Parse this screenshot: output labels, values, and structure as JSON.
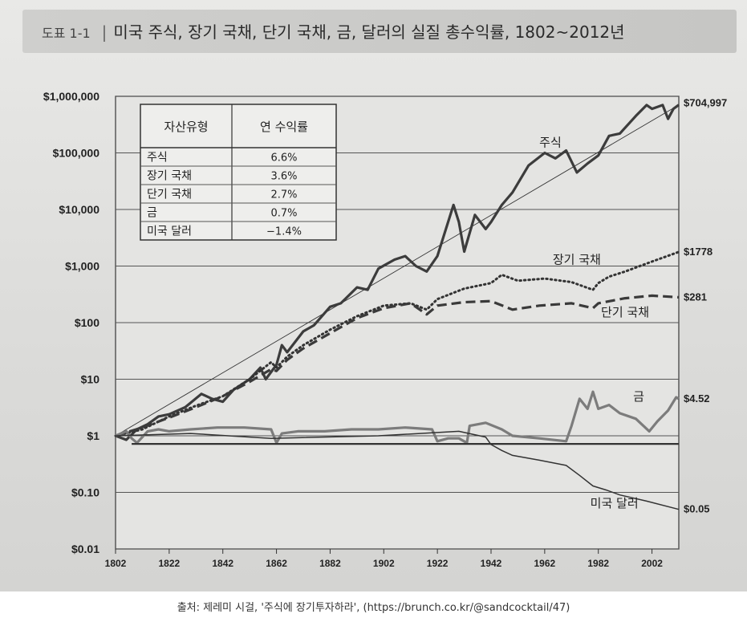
{
  "figure": {
    "number": "도표 1-1",
    "title": "미국 주식, 장기 국채, 단기 국채, 금, 달러의 실질 총수익률, 1802~2012년"
  },
  "caption": "출처: 제레미 시걸, '주식에 장기투자하라', (https://brunch.co.kr/@sandcocktail/47)",
  "chart_data": {
    "type": "line",
    "title": "미국 주식, 장기 국채, 단기 국채, 금, 달러의 실질 총수익률, 1802~2012년",
    "xlabel": "",
    "ylabel": "",
    "yscale": "log",
    "xlim": [
      1802,
      2012
    ],
    "ylim": [
      0.01,
      1000000
    ],
    "x_ticks": [
      1802,
      1822,
      1842,
      1862,
      1882,
      1902,
      1922,
      1942,
      1962,
      1982,
      2002
    ],
    "y_ticks": [
      {
        "value": 1000000,
        "label": "$1,000,000"
      },
      {
        "value": 100000,
        "label": "$100,000"
      },
      {
        "value": 10000,
        "label": "$10,000"
      },
      {
        "value": 1000,
        "label": "$1,000"
      },
      {
        "value": 100,
        "label": "$100"
      },
      {
        "value": 10,
        "label": "$10"
      },
      {
        "value": 1,
        "label": "$1"
      },
      {
        "value": 0.1,
        "label": "$0.10"
      },
      {
        "value": 0.01,
        "label": "$0.01"
      }
    ],
    "grid": true,
    "series": [
      {
        "name": "주식",
        "style": "solid-thick",
        "end_label": "$704,997",
        "x": [
          1802,
          1806,
          1810,
          1814,
          1818,
          1822,
          1828,
          1834,
          1838,
          1842,
          1846,
          1852,
          1856,
          1858,
          1862,
          1864,
          1866,
          1872,
          1876,
          1882,
          1886,
          1892,
          1896,
          1900,
          1906,
          1910,
          1914,
          1918,
          1922,
          1928,
          1930,
          1932,
          1936,
          1940,
          1942,
          1946,
          1950,
          1956,
          1962,
          1966,
          1970,
          1974,
          1978,
          1982,
          1986,
          1990,
          1996,
          2000,
          2002,
          2004,
          2006,
          2008,
          2010,
          2012
        ],
        "y": [
          1,
          0.85,
          1.3,
          1.6,
          2.2,
          2.4,
          3.2,
          5.5,
          4.5,
          4.0,
          6.5,
          10,
          16,
          10,
          18,
          40,
          30,
          70,
          90,
          190,
          220,
          420,
          380,
          900,
          1300,
          1500,
          1000,
          800,
          1500,
          12000,
          6000,
          1800,
          8000,
          4500,
          6000,
          12000,
          20000,
          60000,
          100000,
          80000,
          110000,
          45000,
          65000,
          90000,
          200000,
          220000,
          450000,
          700000,
          600000,
          650000,
          700000,
          400000,
          600000,
          704997
        ]
      },
      {
        "name": "장기 국채",
        "style": "dotted",
        "end_label": "$1778",
        "x": [
          1802,
          1812,
          1822,
          1832,
          1842,
          1852,
          1860,
          1862,
          1866,
          1872,
          1882,
          1892,
          1902,
          1912,
          1918,
          1922,
          1932,
          1942,
          1946,
          1952,
          1962,
          1972,
          1980,
          1982,
          1986,
          1992,
          2002,
          2012
        ],
        "y": [
          1,
          1.3,
          2.2,
          3.4,
          5,
          10,
          20,
          16,
          25,
          40,
          75,
          130,
          200,
          220,
          170,
          260,
          400,
          500,
          700,
          550,
          600,
          520,
          380,
          500,
          650,
          800,
          1200,
          1778
        ]
      },
      {
        "name": "단기 국채",
        "style": "dashed",
        "end_label": "$281",
        "x": [
          1802,
          1812,
          1822,
          1832,
          1842,
          1852,
          1860,
          1862,
          1866,
          1872,
          1882,
          1892,
          1902,
          1912,
          1918,
          1922,
          1932,
          1942,
          1950,
          1960,
          1972,
          1980,
          1982,
          1992,
          2002,
          2012
        ],
        "y": [
          1,
          1.4,
          2.1,
          3.2,
          5,
          9,
          15,
          14,
          22,
          35,
          65,
          120,
          180,
          220,
          140,
          200,
          230,
          240,
          170,
          200,
          220,
          180,
          220,
          270,
          300,
          281
        ]
      },
      {
        "name": "금",
        "style": "solid",
        "end_label": "$4.52",
        "x": [
          1802,
          1806,
          1808,
          1810,
          1814,
          1818,
          1822,
          1830,
          1840,
          1850,
          1860,
          1862,
          1864,
          1870,
          1880,
          1890,
          1900,
          1910,
          1920,
          1922,
          1926,
          1930,
          1933,
          1934,
          1940,
          1946,
          1950,
          1960,
          1970,
          1972,
          1975,
          1978,
          1980,
          1982,
          1986,
          1990,
          1996,
          2001,
          2004,
          2008,
          2011,
          2012
        ],
        "y": [
          1,
          1.2,
          0.9,
          0.75,
          1.2,
          1.3,
          1.2,
          1.3,
          1.4,
          1.4,
          1.3,
          0.75,
          1.1,
          1.2,
          1.2,
          1.3,
          1.3,
          1.4,
          1.3,
          0.8,
          0.9,
          0.9,
          0.75,
          1.5,
          1.7,
          1.3,
          1.0,
          0.9,
          0.8,
          1.5,
          4.5,
          3.0,
          6.0,
          3.0,
          3.5,
          2.5,
          2.0,
          1.2,
          1.8,
          2.8,
          4.8,
          4.52
        ]
      },
      {
        "name": "미국 달러",
        "style": "solid-thin",
        "end_label": "$0.05",
        "x": [
          1802,
          1830,
          1860,
          1900,
          1930,
          1940,
          1942,
          1946,
          1950,
          1960,
          1970,
          1975,
          1980,
          1985,
          1990,
          2000,
          2012
        ],
        "y": [
          1,
          1.1,
          0.9,
          1.0,
          1.2,
          0.95,
          0.7,
          0.55,
          0.45,
          0.37,
          0.3,
          0.2,
          0.13,
          0.11,
          0.09,
          0.07,
          0.05
        ]
      },
      {
        "name": "기준선",
        "style": "reference",
        "x": [
          1802,
          2012
        ],
        "y": [
          0.72,
          0.72
        ]
      }
    ],
    "annotations": [
      "주식",
      "장기 국채",
      "단기 국채",
      "금",
      "미국 달러"
    ],
    "table": {
      "columns": [
        "자산유형",
        "연 수익률"
      ],
      "rows": [
        [
          "주식",
          "6.6%"
        ],
        [
          "장기 국채",
          "3.6%"
        ],
        [
          "단기 국채",
          "2.7%"
        ],
        [
          "금",
          "0.7%"
        ],
        [
          "미국 달러",
          "−1.4%"
        ]
      ]
    }
  }
}
